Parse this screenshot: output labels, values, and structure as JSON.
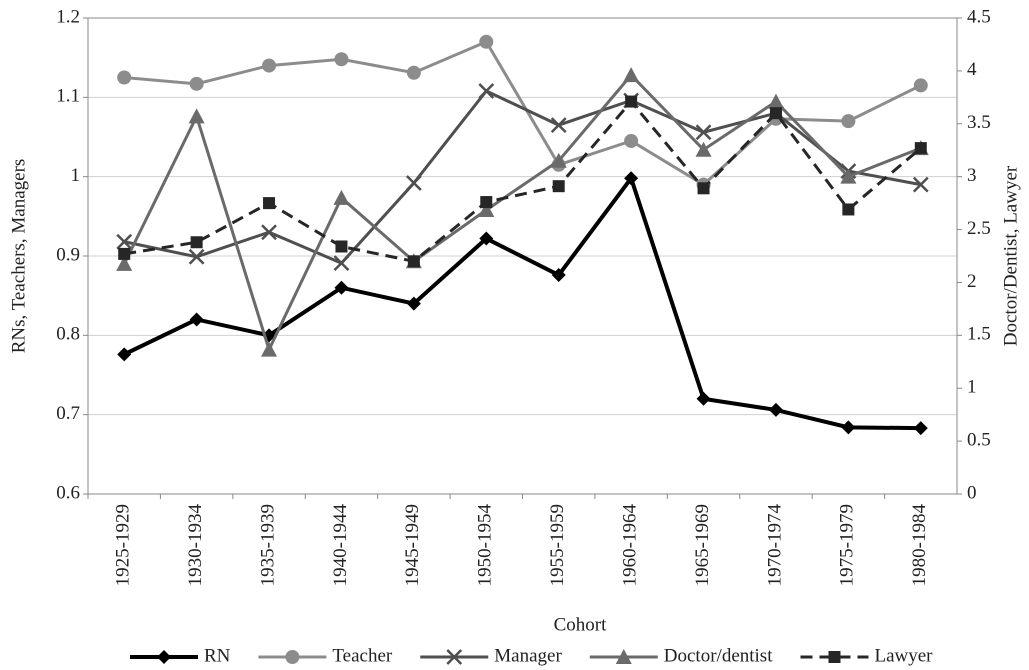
{
  "chart_data": {
    "type": "line",
    "xlabel": "Cohort",
    "ylabel": "RNs, Teachers, Managers",
    "y2label": "Doctor/Dentist, Lawyer",
    "categories": [
      "1925-1929",
      "1930-1934",
      "1935-1939",
      "1940-1944",
      "1945-1949",
      "1950-1954",
      "1955-1959",
      "1960-1964",
      "1965-1969",
      "1970-1974",
      "1975-1979",
      "1980-1984"
    ],
    "series": [
      {
        "name": "RN",
        "color": "#000000",
        "marker": "diamond",
        "values": [
          0.776,
          0.82,
          0.8,
          0.86,
          0.84,
          0.922,
          0.876,
          0.998,
          0.72,
          0.706,
          0.684,
          0.683
        ]
      },
      {
        "name": "Teacher",
        "color": "#8c8c8c",
        "marker": "circle",
        "values": [
          1.125,
          1.117,
          1.14,
          1.148,
          1.131,
          1.17,
          1.015,
          1.045,
          0.99,
          1.073,
          1.07,
          1.115
        ]
      },
      {
        "name": "Manager",
        "color": "#4f4f4f",
        "marker": "x",
        "values": [
          0.918,
          0.899,
          0.93,
          0.891,
          0.992,
          1.108,
          1.065,
          1.096,
          1.056,
          1.08,
          1.007,
          0.99
        ]
      },
      {
        "name": "Doctor/dentist",
        "color": "#6a6a6a",
        "marker": "triangle",
        "axis": "y2",
        "values": [
          2.175,
          3.57,
          1.365,
          2.8,
          2.2,
          2.685,
          3.15,
          3.96,
          3.255,
          3.71,
          3.0,
          3.27
        ]
      },
      {
        "name": "Lawyer",
        "color": "#262626",
        "marker": "square",
        "dashed": true,
        "axis": "y2",
        "values": [
          2.27,
          2.38,
          2.75,
          2.34,
          2.2,
          2.76,
          2.91,
          3.71,
          2.89,
          3.6,
          2.69,
          3.27
        ]
      }
    ],
    "ylim": [
      0.6,
      1.2
    ],
    "yticks": [
      0.6,
      0.7,
      0.8,
      0.9,
      1,
      1.1,
      1.2
    ],
    "y2lim": [
      0,
      4.5
    ],
    "y2ticks": [
      0,
      0.5,
      1,
      1.5,
      2,
      2.5,
      3,
      3.5,
      4,
      4.5
    ],
    "grid": true,
    "legend": "bottom"
  }
}
